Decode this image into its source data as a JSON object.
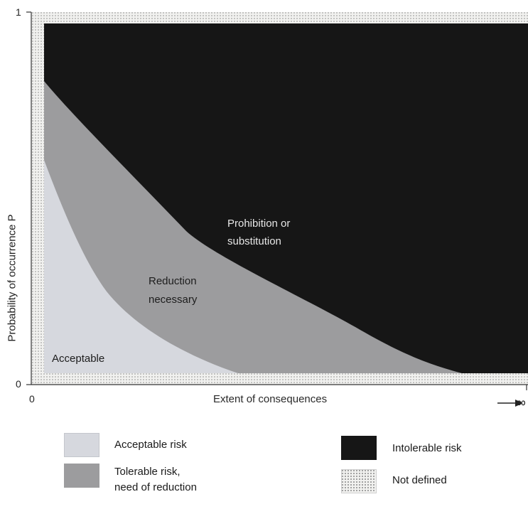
{
  "axes": {
    "y_label": "Probability of occurrence P",
    "y_tick_top": "1",
    "y_tick_bottom": "0",
    "x_label": "Extent of consequences",
    "x_tick_left": "0",
    "x_tick_right": "∞"
  },
  "regions": {
    "acceptable": "Acceptable",
    "reduction_line1": "Reduction",
    "reduction_line2": "necessary",
    "prohibition_line1": "Prohibition or",
    "prohibition_line2": "substitution"
  },
  "legend": {
    "acceptable_risk": "Acceptable risk",
    "tolerable_line1": "Tolerable risk,",
    "tolerable_line2": "need of reduction",
    "intolerable_risk": "Intolerable risk",
    "not_defined": "Not defined"
  },
  "colors": {
    "acceptable": "#d6d8de",
    "tolerable": "#9c9c9e",
    "intolerable": "#161616",
    "not_defined": "#f1f1ef"
  }
}
